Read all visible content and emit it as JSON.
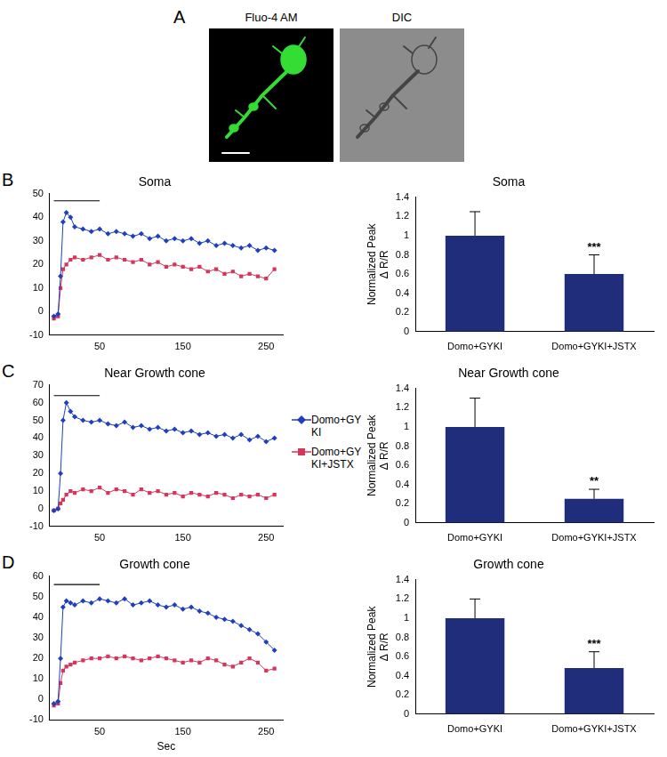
{
  "image_panel": {
    "label": "A",
    "images": [
      "Fluo-4 AM",
      "DIC"
    ]
  },
  "chart_data": [
    {
      "type": "line",
      "panel": "B",
      "title": "Soma",
      "x": [
        -5,
        0,
        3,
        6,
        10,
        15,
        20,
        30,
        40,
        50,
        60,
        70,
        80,
        90,
        100,
        110,
        120,
        130,
        140,
        150,
        160,
        170,
        180,
        190,
        200,
        210,
        220,
        230,
        240,
        250,
        260
      ],
      "series": [
        {
          "name": "Domo+GYKI",
          "color": "#1f3fbf",
          "marker": "diamond",
          "values": [
            -2,
            -1,
            15,
            38,
            42,
            40,
            36,
            35,
            34,
            35,
            33,
            34,
            33,
            32,
            33,
            31,
            32,
            30,
            31,
            30,
            31,
            29,
            30,
            28,
            29,
            28,
            27,
            28,
            26,
            27,
            26
          ]
        },
        {
          "name": "Domo+GYKI+JSTX",
          "color": "#d6365c",
          "marker": "square",
          "values": [
            -3,
            -2,
            10,
            18,
            20,
            22,
            23,
            22,
            23,
            24,
            22,
            23,
            22,
            21,
            22,
            20,
            21,
            19,
            20,
            19,
            18,
            19,
            17,
            18,
            16,
            17,
            15,
            16,
            15,
            14,
            18
          ]
        }
      ],
      "application_bar": {
        "x": [
          -5,
          50
        ],
        "y": 47
      },
      "xlim": [
        -10,
        270
      ],
      "xticks": [
        50,
        150,
        250
      ],
      "ylim": [
        -10,
        50
      ],
      "yticks": [
        -10,
        0,
        10,
        20,
        30,
        40,
        50
      ],
      "grid": false
    },
    {
      "type": "bar",
      "title": "Soma",
      "y_label": [
        "Normalized Peak",
        "Δ R/R"
      ],
      "categories": [
        "Domo+GYKI",
        "Domo+GYKI+JSTX"
      ],
      "values": [
        1,
        0.6
      ],
      "errors": [
        0.25,
        0.2
      ],
      "significance": [
        null,
        "***"
      ],
      "color": "#1f2d7b",
      "ylim": [
        0,
        1.4
      ],
      "yticks": [
        0,
        0.2,
        0.4,
        0.6,
        0.8,
        1,
        1.2,
        1.4
      ],
      "grid": false
    },
    {
      "type": "line",
      "panel": "C",
      "title": "Near Growth cone",
      "legend": "right",
      "x": [
        -5,
        0,
        3,
        6,
        10,
        15,
        20,
        30,
        40,
        50,
        60,
        70,
        80,
        90,
        100,
        110,
        120,
        130,
        140,
        150,
        160,
        170,
        180,
        190,
        200,
        210,
        220,
        230,
        240,
        250,
        260
      ],
      "series": [
        {
          "name": "Domo+GYKI",
          "color": "#1f3fbf",
          "marker": "diamond",
          "values": [
            -1,
            0,
            20,
            50,
            60,
            55,
            52,
            50,
            49,
            50,
            48,
            47,
            49,
            46,
            47,
            45,
            46,
            44,
            45,
            43,
            44,
            42,
            43,
            41,
            42,
            40,
            42,
            39,
            41,
            38,
            40
          ]
        },
        {
          "name": "Domo+GYKI+JSTX",
          "color": "#d6365c",
          "marker": "square",
          "values": [
            -1,
            0,
            3,
            5,
            8,
            10,
            9,
            11,
            10,
            12,
            9,
            11,
            10,
            8,
            11,
            9,
            10,
            8,
            9,
            7,
            9,
            8,
            7,
            9,
            8,
            6,
            8,
            7,
            8,
            6,
            8
          ]
        }
      ],
      "application_bar": {
        "x": [
          -5,
          50
        ],
        "y": 64
      },
      "xlim": [
        -10,
        270
      ],
      "xticks": [
        50,
        150,
        250
      ],
      "ylim": [
        -10,
        70
      ],
      "yticks": [
        -10,
        0,
        10,
        20,
        30,
        40,
        50,
        60,
        70
      ],
      "grid": false
    },
    {
      "type": "bar",
      "title": "Near Growth cone",
      "y_label": [
        "Normalized Peak",
        "Δ R/R"
      ],
      "categories": [
        "Domo+GYKI",
        "Domo+GYKI+JSTX"
      ],
      "values": [
        1,
        0.25
      ],
      "errors": [
        0.3,
        0.1
      ],
      "significance": [
        null,
        "**"
      ],
      "color": "#1f2d7b",
      "ylim": [
        0,
        1.4
      ],
      "yticks": [
        0,
        0.2,
        0.4,
        0.6,
        0.8,
        1,
        1.2,
        1.4
      ],
      "grid": false
    },
    {
      "type": "line",
      "panel": "D",
      "title": "Growth cone",
      "x_label": "Sec",
      "x": [
        -5,
        0,
        3,
        6,
        10,
        15,
        20,
        30,
        40,
        50,
        60,
        70,
        80,
        90,
        100,
        110,
        120,
        130,
        140,
        150,
        160,
        170,
        180,
        190,
        200,
        210,
        220,
        230,
        240,
        250,
        260
      ],
      "series": [
        {
          "name": "Domo+GYKI",
          "color": "#1f3fbf",
          "marker": "diamond",
          "values": [
            -2,
            -1,
            20,
            45,
            48,
            47,
            46,
            48,
            47,
            49,
            48,
            47,
            49,
            46,
            47,
            48,
            46,
            45,
            46,
            44,
            45,
            43,
            42,
            40,
            39,
            38,
            36,
            34,
            32,
            28,
            24
          ]
        },
        {
          "name": "Domo+GYKI+JSTX",
          "color": "#d6365c",
          "marker": "square",
          "values": [
            -3,
            -2,
            8,
            14,
            16,
            17,
            18,
            19,
            20,
            20,
            21,
            20,
            21,
            20,
            19,
            20,
            21,
            20,
            19,
            18,
            19,
            18,
            20,
            19,
            17,
            16,
            18,
            20,
            18,
            14,
            15
          ]
        }
      ],
      "application_bar": {
        "x": [
          -5,
          50
        ],
        "y": 56
      },
      "xlim": [
        -10,
        270
      ],
      "xticks": [
        50,
        150,
        250
      ],
      "ylim": [
        -10,
        60
      ],
      "yticks": [
        -10,
        0,
        10,
        20,
        30,
        40,
        50,
        60
      ],
      "grid": false
    },
    {
      "type": "bar",
      "title": "Growth cone",
      "y_label": [
        "Normalized Peak",
        "Δ R/R"
      ],
      "categories": [
        "Domo+GYKI",
        "Domo+GYKI+JSTX"
      ],
      "values": [
        1,
        0.48
      ],
      "errors": [
        0.2,
        0.17
      ],
      "significance": [
        null,
        "***"
      ],
      "color": "#1f2d7b",
      "ylim": [
        0,
        1.4
      ],
      "yticks": [
        0,
        0.2,
        0.4,
        0.6,
        0.8,
        1,
        1.2,
        1.4
      ],
      "grid": false
    }
  ]
}
